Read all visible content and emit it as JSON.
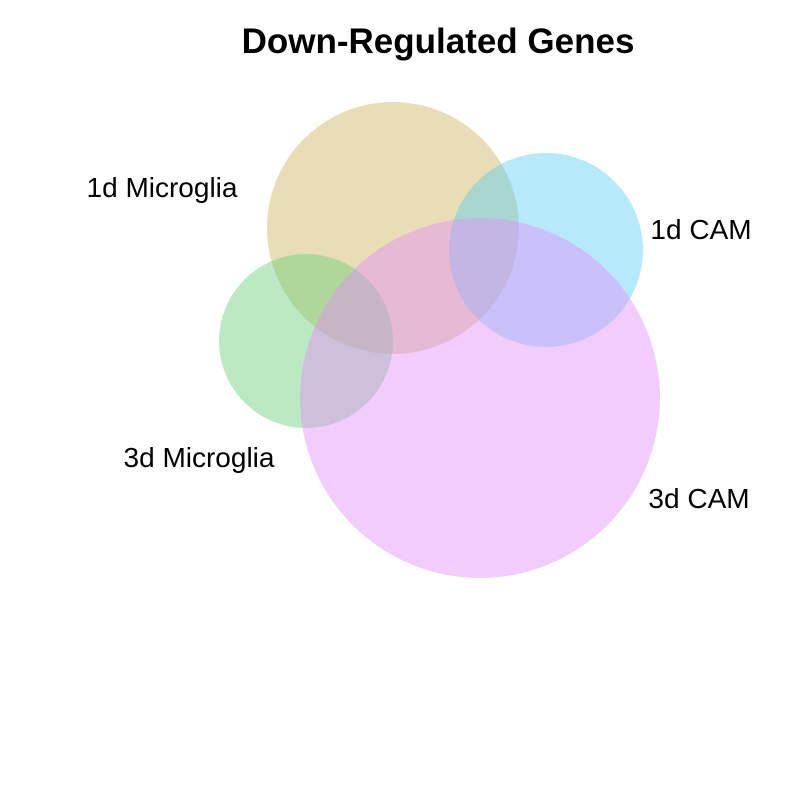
{
  "chart_data": {
    "type": "venn",
    "title": "Down-Regulated Genes",
    "sets": [
      {
        "name": "1d Microglia",
        "color": "#CFB35F"
      },
      {
        "name": "1d CAM",
        "color": "#5ECFF2"
      },
      {
        "name": "3d Microglia",
        "color": "#68D177"
      },
      {
        "name": "3d CAM",
        "color": "#E28FFB"
      }
    ],
    "opacity": 0.45
  }
}
